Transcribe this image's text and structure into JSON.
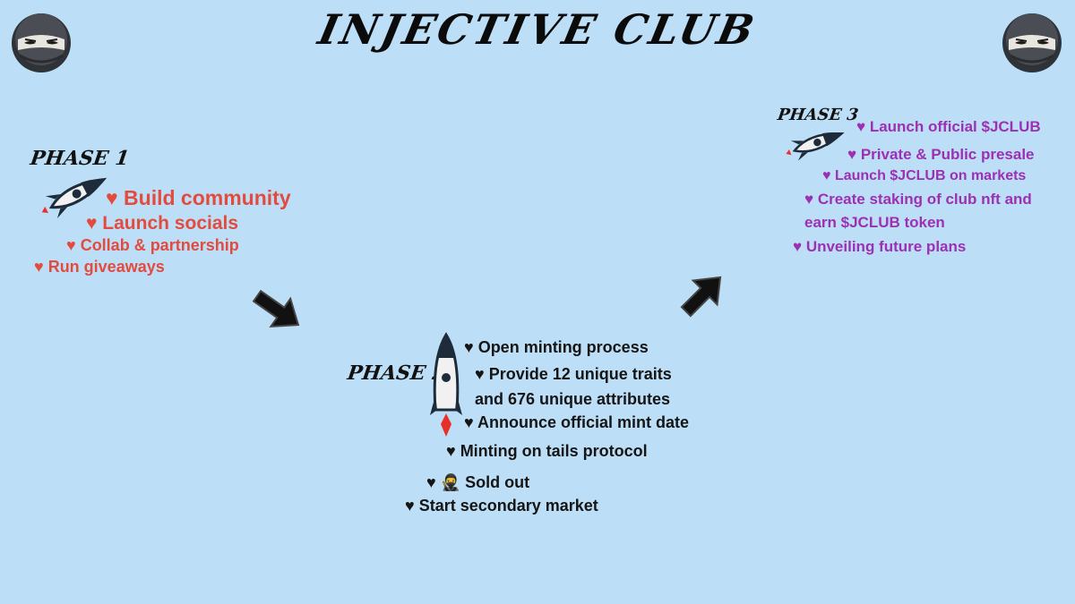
{
  "title": "INJECTIVE CLUB",
  "colors": {
    "background": "#bcdff7",
    "phase1": "#e34b3e",
    "phase2": "#151515",
    "phase3": "#9d2fb5"
  },
  "icons": {
    "ninja": "ninja-mascot-icon",
    "rocket": "rocket-icon",
    "arrow": "arrow-icon"
  },
  "phase1": {
    "label": "PHASE 1",
    "items": [
      "♥ Build community",
      "♥ Launch socials",
      "♥ Collab & partnership",
      "♥ Run giveaways"
    ]
  },
  "phase2": {
    "label": "PHASE 2",
    "items": [
      "♥ Open minting process",
      "♥ Provide 12 unique traits",
      "and 676 unique attributes",
      "♥ Announce official mint date",
      "♥ Minting on tails protocol",
      "♥ 🥷 Sold out",
      "♥ Start secondary market"
    ]
  },
  "phase3": {
    "label": "PHASE 3",
    "items": [
      "♥ Launch official $JCLUB",
      "♥ Private & Public presale",
      "♥ Launch $JCLUB on markets",
      "♥ Create staking of club nft and",
      "earn $JCLUB token",
      "♥ Unveiling future plans"
    ]
  }
}
